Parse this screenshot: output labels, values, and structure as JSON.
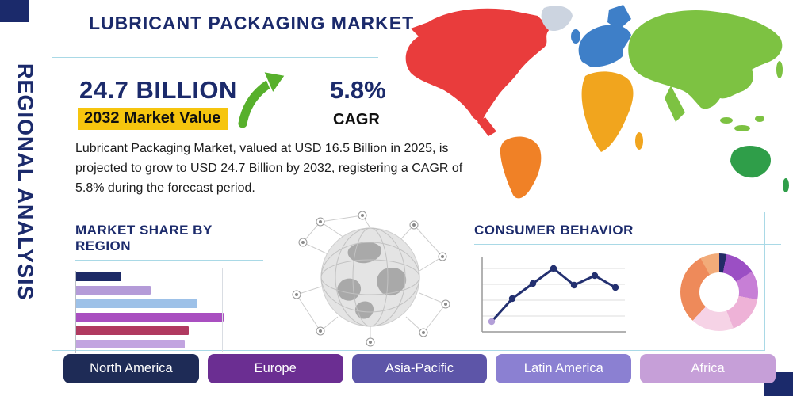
{
  "title": "LUBRICANT PACKAGING MARKET",
  "side_label": "REGIONAL ANALYSIS",
  "palette": {
    "navy": "#1b2a6b",
    "yellow": "#f6c50e",
    "green": "#57b02c",
    "underline": "#a9d9e6"
  },
  "stats": {
    "market_value": "24.7 BILLION",
    "market_value_label": "2032 Market Value",
    "cagr_value": "5.8%",
    "cagr_label": "CAGR",
    "description": "Lubricant Packaging Market, valued at USD 16.5 Billion in 2025, is projected to grow to USD 24.7 Billion by 2032, registering a CAGR of 5.8% during the forecast period."
  },
  "region_buttons": [
    {
      "label": "North America",
      "color": "#1e2b56"
    },
    {
      "label": "Europe",
      "color": "#6b2e92"
    },
    {
      "label": "Asia-Pacific",
      "color": "#5d55a8"
    },
    {
      "label": "Latin America",
      "color": "#8b80d2"
    },
    {
      "label": "Africa",
      "color": "#c69fd8"
    }
  ],
  "map_regions": [
    {
      "name": "North America",
      "color": "#e93c3c"
    },
    {
      "name": "South America",
      "color": "#f08126"
    },
    {
      "name": "Europe",
      "color": "#3e7fc8"
    },
    {
      "name": "Africa",
      "color": "#f1a51e"
    },
    {
      "name": "Asia",
      "color": "#7dc242"
    },
    {
      "name": "Australia",
      "color": "#2f9e49"
    },
    {
      "name": "Greenland",
      "color": "#ccd4e0"
    }
  ],
  "chart_data": [
    {
      "type": "bar",
      "title": "MARKET SHARE BY REGION",
      "orientation": "horizontal",
      "note": "no axis numbers or category labels shown; values are relative bar lengths in percent of chart width",
      "values": [
        24,
        40,
        65,
        79,
        60,
        58
      ],
      "colors": [
        "#1d2a66",
        "#b49bd8",
        "#9dc1e8",
        "#a94fc0",
        "#b03a60",
        "#c2a4e0"
      ]
    },
    {
      "type": "line",
      "title": "CONSUMER BEHAVIOR",
      "note": "no axis labels shown; values are relative heights 0-100",
      "x": [
        1,
        2,
        3,
        4,
        5,
        6,
        7
      ],
      "values": [
        14,
        44,
        64,
        84,
        62,
        75,
        59
      ],
      "line_color": "#233070",
      "first_point_color": "#b39fd8",
      "grid": true
    },
    {
      "type": "pie",
      "donut": true,
      "note": "no segment labels shown; values are relative percents",
      "segments": [
        {
          "value": 3,
          "color": "#232b66"
        },
        {
          "value": 13,
          "color": "#9b4fc4"
        },
        {
          "value": 12,
          "color": "#c77fd6"
        },
        {
          "value": 16,
          "color": "#eeb2d7"
        },
        {
          "value": 18,
          "color": "#f6d3e6"
        },
        {
          "value": 30,
          "color": "#ee8a5a"
        },
        {
          "value": 8,
          "color": "#f2ab79"
        }
      ]
    }
  ]
}
